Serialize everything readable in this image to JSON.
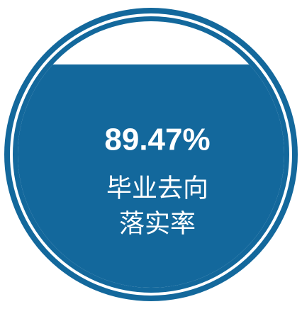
{
  "chart_data": {
    "type": "liquid",
    "value": 89.47,
    "value_label": "89.47%",
    "label_lines": [
      "毕业去向",
      "落实率"
    ],
    "color": "#13689c"
  }
}
